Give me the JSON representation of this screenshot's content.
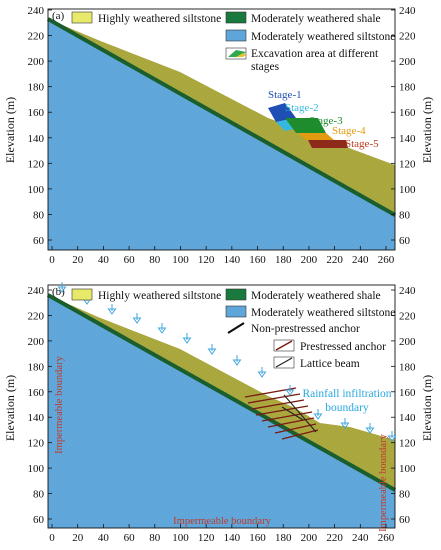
{
  "colors": {
    "highly_weathered_siltstone": "#e8e86a",
    "moderately_weathered_shale": "#1a7a3e",
    "moderately_weathered_siltstone": "#5ea6d9",
    "slope_fill": "#a9a63c",
    "rain": "#3fa7df",
    "boundary": "#c0392b"
  },
  "panels": [
    {
      "label": "(a)",
      "legend": [
        {
          "text": "Highly weathered siltstone",
          "swatch": "highly-weathered-siltstone"
        },
        {
          "text": "Moderately weathered shale",
          "swatch": "moderately-weathered-shale"
        },
        {
          "text": "Moderately weathered siltstone",
          "swatch": "moderately-weathered-siltstone"
        },
        {
          "text": "Excavation area at different",
          "swatch": "excavation-area"
        },
        {
          "text": "stages",
          "swatch": ""
        }
      ],
      "stages": [
        "Stage-1",
        "Stage-2",
        "Stage-3",
        "Stage-4",
        "Stage-5"
      ],
      "y_ticks": [
        "240",
        "220",
        "200",
        "180",
        "160",
        "140",
        "120",
        "100",
        "80",
        "60"
      ],
      "x_ticks": [
        "0",
        "20",
        "40",
        "60",
        "80",
        "100",
        "120",
        "140",
        "160",
        "180",
        "200",
        "220",
        "240",
        "260"
      ],
      "y_label": "Elevation (m)"
    },
    {
      "label": "(b)",
      "legend": [
        {
          "text": "Highly weathered siltstone",
          "swatch": "highly-weathered-siltstone"
        },
        {
          "text": "Moderately weathered shale",
          "swatch": "moderately-weathered-shale"
        },
        {
          "text": "Moderately weathered siltstone",
          "swatch": "moderately-weathered-siltstone"
        },
        {
          "text": "Non-prestressed anchor",
          "swatch": "non-prestressed-anchor"
        },
        {
          "text": "Prestressed anchor",
          "swatch": "prestressed-anchor"
        },
        {
          "text": "Lattice beam",
          "swatch": "lattice-beam"
        }
      ],
      "rain_label": [
        "Rainfall infiltration",
        "boundary"
      ],
      "boundary_labels": {
        "left": "Impermeable boundary",
        "right": "Impermeable boundary",
        "bottom": "Impermeable boundary"
      },
      "y_ticks": [
        "240",
        "220",
        "200",
        "180",
        "160",
        "140",
        "120",
        "100",
        "80",
        "60"
      ],
      "x_ticks": [
        "0",
        "20",
        "40",
        "60",
        "80",
        "100",
        "120",
        "140",
        "160",
        "180",
        "200",
        "220",
        "240",
        "260"
      ],
      "y_label": "Elevation (m)"
    }
  ]
}
